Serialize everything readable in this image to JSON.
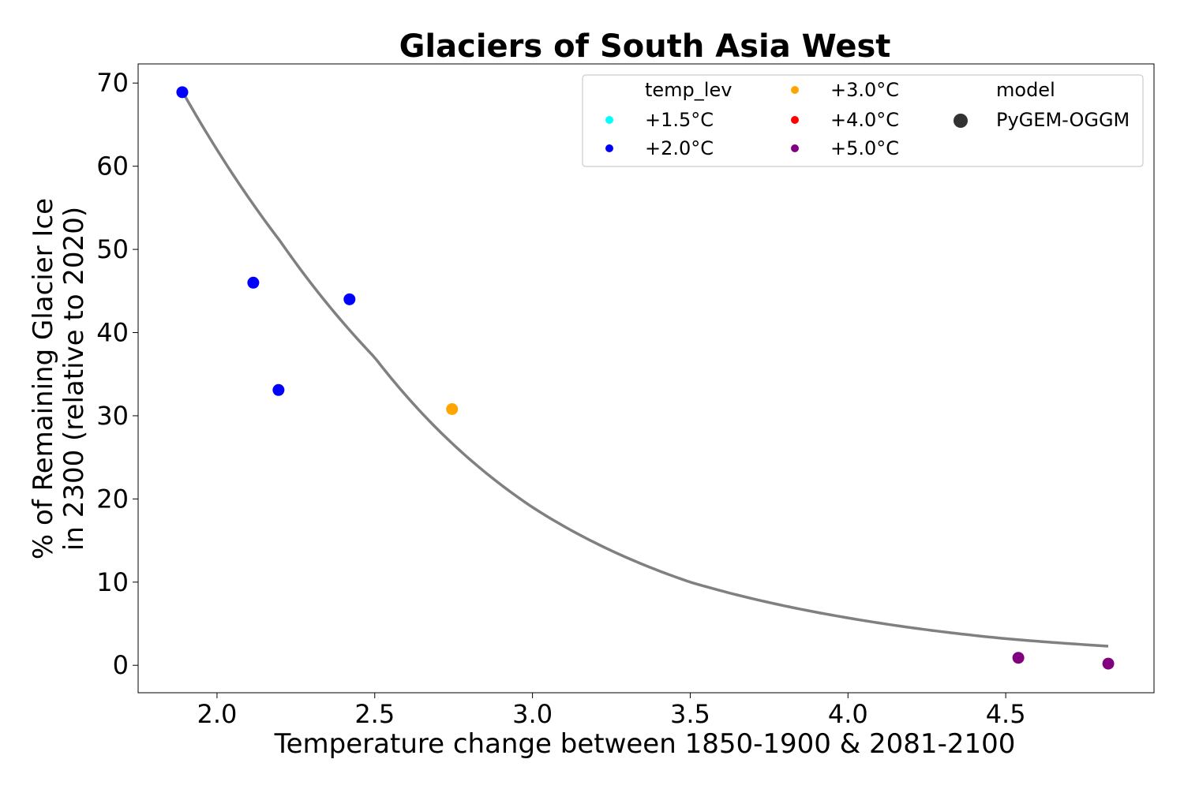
{
  "chart_data": {
    "type": "scatter",
    "title": "Glaciers of South Asia West",
    "xlabel": "Temperature change between 1850-1900 & 2081-2100",
    "ylabel_lines": [
      "% of Remaining Glacier Ice",
      "in 2300 (relative to 2020)"
    ],
    "xlim": [
      1.75,
      4.97
    ],
    "ylim": [
      -3.3,
      72.3
    ],
    "xticks": [
      2.0,
      2.5,
      3.0,
      3.5,
      4.0,
      4.5
    ],
    "xtick_labels": [
      "2.0",
      "2.5",
      "3.0",
      "3.5",
      "4.0",
      "4.5"
    ],
    "yticks": [
      0,
      10,
      20,
      30,
      40,
      50,
      60,
      70
    ],
    "ytick_labels": [
      "0",
      "10",
      "20",
      "30",
      "40",
      "50",
      "60",
      "70"
    ],
    "series": [
      {
        "name": "+1.5°C",
        "color": "#00ffff",
        "points": []
      },
      {
        "name": "+2.0°C",
        "color": "#0000ff",
        "points": [
          [
            1.89,
            68.9
          ],
          [
            2.115,
            46.0
          ],
          [
            2.195,
            33.1
          ],
          [
            2.42,
            44.0
          ]
        ]
      },
      {
        "name": "+3.0°C",
        "color": "#ffa500",
        "points": [
          [
            2.745,
            30.8
          ]
        ]
      },
      {
        "name": "+4.0°C",
        "color": "#ff0000",
        "points": []
      },
      {
        "name": "+5.0°C",
        "color": "#800080",
        "points": [
          [
            4.54,
            0.9
          ],
          [
            4.825,
            0.2
          ]
        ]
      }
    ],
    "fit_curve": {
      "color": "#808080",
      "x_range": [
        1.89,
        4.825
      ],
      "x": [
        1.89,
        2.2,
        2.5,
        3.0,
        3.5,
        4.0,
        4.5,
        4.825
      ],
      "y": [
        69.0,
        51.0,
        37.0,
        19.0,
        10.0,
        5.7,
        3.2,
        2.3
      ]
    },
    "legend": {
      "placement": "top-right",
      "hue_title": "temp_lev",
      "hue_entries": [
        {
          "label": "+1.5°C",
          "color": "#00ffff"
        },
        {
          "label": "+2.0°C",
          "color": "#0000ff"
        },
        {
          "label": "+3.0°C",
          "color": "#ffa500"
        },
        {
          "label": "+4.0°C",
          "color": "#ff0000"
        },
        {
          "label": "+5.0°C",
          "color": "#800080"
        }
      ],
      "style_title": "model",
      "style_entries": [
        {
          "label": "PyGEM-OGGM",
          "color": "#333333"
        }
      ]
    }
  }
}
